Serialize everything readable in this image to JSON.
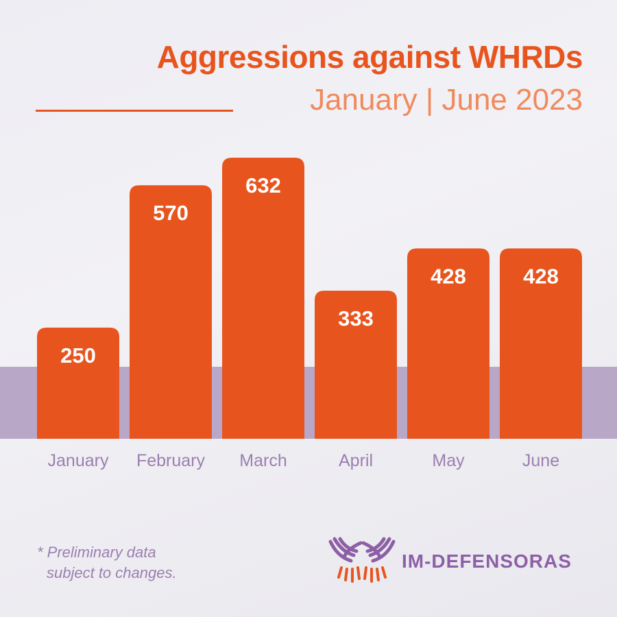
{
  "header": {
    "title": "Aggressions against WHRDs",
    "subtitle": "January | June 2023"
  },
  "chart_data": {
    "type": "bar",
    "title": "Aggressions against WHRDs",
    "subtitle": "January | June 2023",
    "categories": [
      "January",
      "February",
      "March",
      "April",
      "May",
      "June"
    ],
    "values": [
      250,
      570,
      632,
      333,
      428,
      428
    ],
    "xlabel": "",
    "ylabel": "",
    "ylim": [
      0,
      632
    ],
    "grid": false,
    "legend": "none",
    "bar_color": "#e8541e",
    "label_color": "#ffffff",
    "category_color": "#9b7fb0"
  },
  "footnote": {
    "line1": "* Preliminary data",
    "line2": "subject to changes."
  },
  "logo": {
    "text": "IM-DEFENSORAS",
    "icon": "hands-logo-icon",
    "color": "#8d5fa6"
  }
}
